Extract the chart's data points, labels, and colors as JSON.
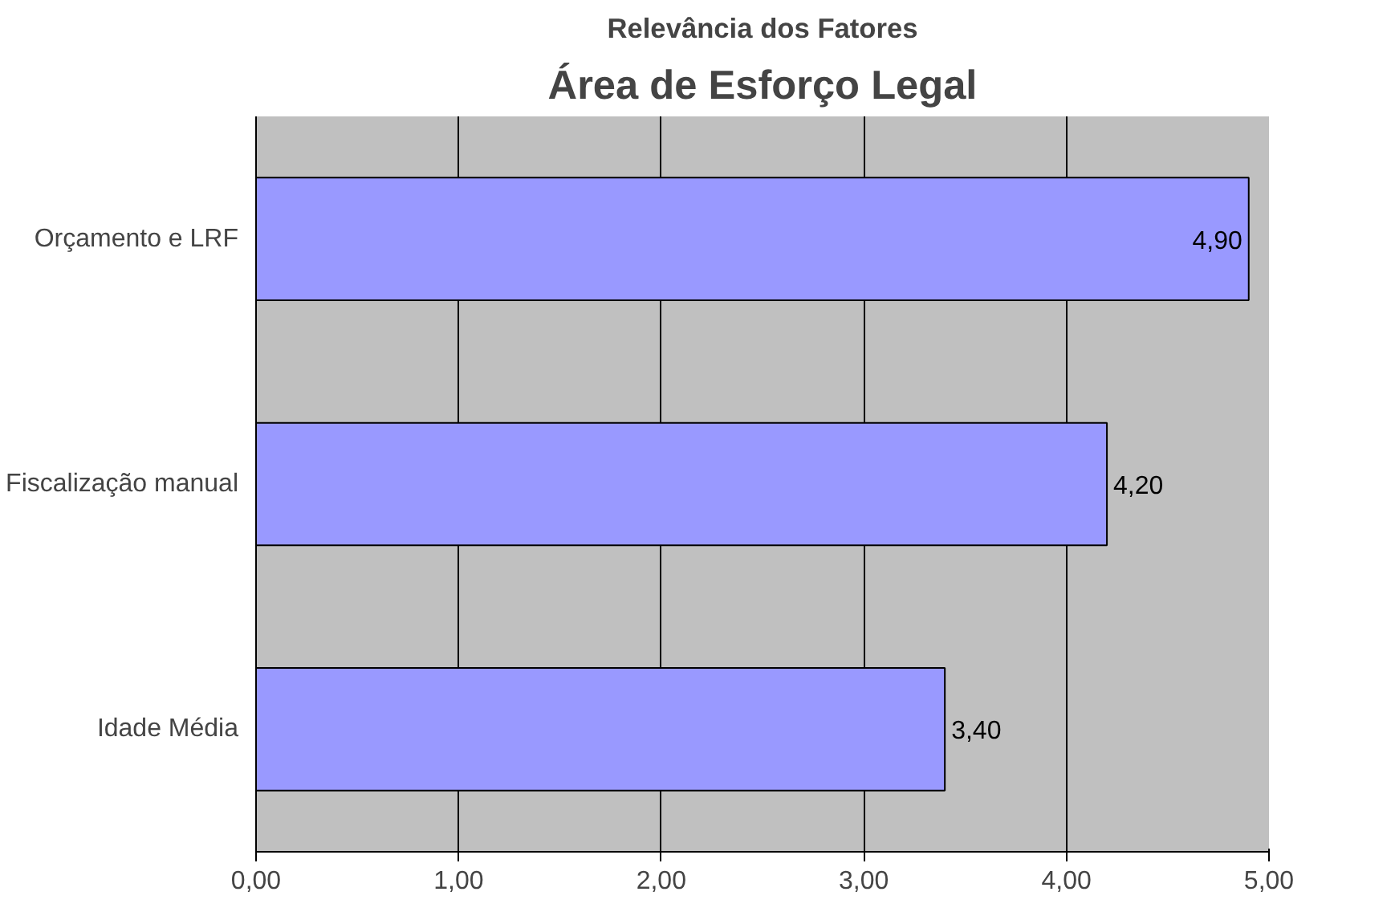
{
  "chart_data": {
    "type": "bar",
    "orientation": "horizontal",
    "title": "Relevância dos Fatores",
    "subtitle": "Área de Esforço Legal",
    "categories": [
      "Orçamento e LRF",
      "Fiscalização manual",
      "Idade Média"
    ],
    "values": [
      4.9,
      4.2,
      3.4
    ],
    "color": "#9999ff",
    "value_labels": [
      "4,90",
      "4,20",
      "3,40"
    ],
    "xlim": [
      0,
      5
    ],
    "xticks": [
      {
        "value": 0,
        "label": "0,00"
      },
      {
        "value": 1,
        "label": "1,00"
      },
      {
        "value": 2,
        "label": "2,00"
      },
      {
        "value": 3,
        "label": "3,00"
      },
      {
        "value": 4,
        "label": "4,00"
      },
      {
        "value": 5,
        "label": "5,00"
      }
    ],
    "grid": "x"
  }
}
